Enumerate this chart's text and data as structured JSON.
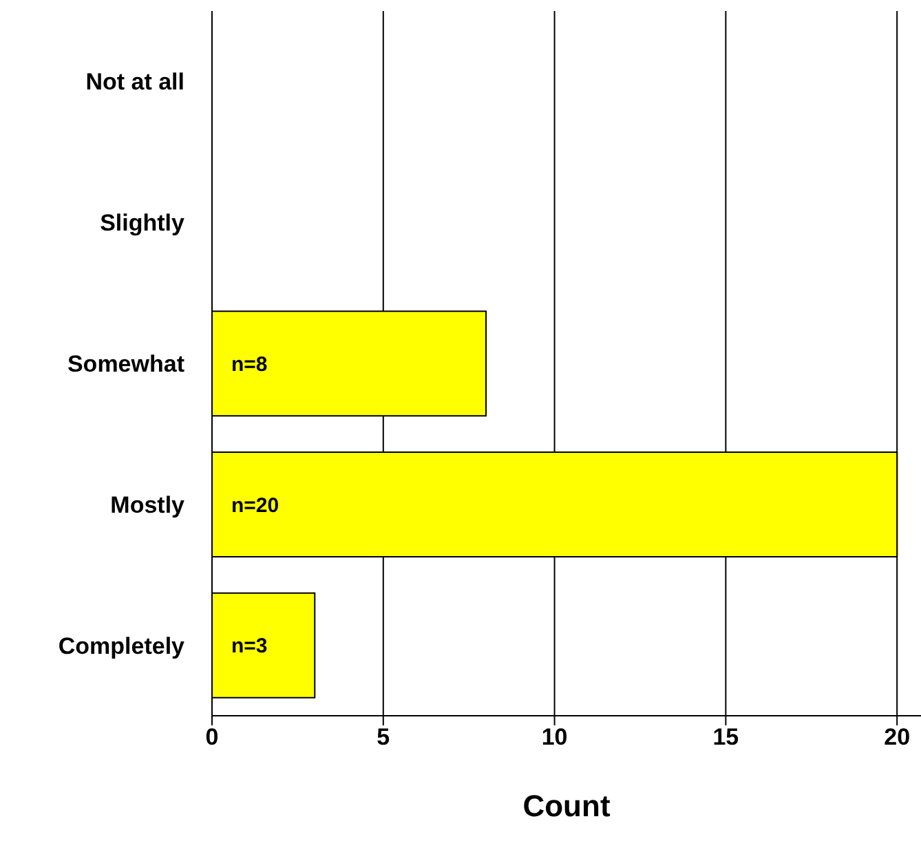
{
  "chart_data": {
    "type": "bar",
    "orientation": "horizontal",
    "xlabel": "Count",
    "categories": [
      "Not at all",
      "Slightly",
      "Somewhat",
      "Mostly",
      "Completely"
    ],
    "values": [
      0,
      0,
      8,
      20,
      3
    ],
    "value_labels": [
      null,
      null,
      "n=8",
      "n=20",
      "n=3"
    ],
    "color": "#ffff00",
    "xlim": [
      0,
      20.7
    ],
    "xticks": [
      0,
      5,
      10,
      15,
      20
    ],
    "grid": "x"
  }
}
